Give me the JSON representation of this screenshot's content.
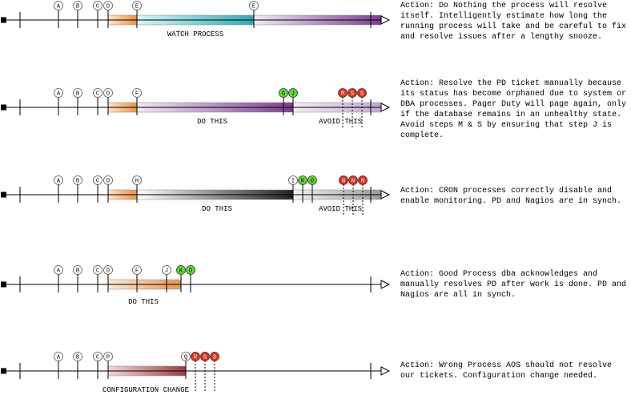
{
  "rows": [
    {
      "markers": [
        "A",
        "B",
        "C",
        "D",
        "E",
        "E"
      ],
      "captions": [
        "WATCH PROCESS"
      ],
      "action": "Action: Do Nothing the process will resolve itself. Intelligently estimate how long the running process will take and be careful to fix and resolve issues after a lengthy snooze."
    },
    {
      "markers": [
        "A",
        "B",
        "C",
        "D",
        "F",
        "G",
        "J",
        "M",
        "S",
        "S"
      ],
      "captions": [
        "DO THIS",
        "AVOID THIS"
      ],
      "action": "Action: Resolve the PD ticket manually because its status has become orphaned due to system or DBA processes. Pager Duty will page again, only if the database remains in an unhealthy state. Avoid steps M & S by ensuring that step J is complete."
    },
    {
      "markers": [
        "A",
        "B",
        "C",
        "D",
        "H",
        "I",
        "K",
        "O",
        "N",
        "N",
        "N"
      ],
      "captions": [
        "DO THIS",
        "AVOID THIS"
      ],
      "action": "Action: CRON processes correctly disable and enable monitoring. PD and Nagios are in synch."
    },
    {
      "markers": [
        "A",
        "B",
        "C",
        "D",
        "F",
        "J",
        "K",
        "O"
      ],
      "captions": [
        "DO THIS"
      ],
      "action": "Action: Good Process dba acknowledges and manually resolves PD after work is done. PD and Nagios are all in synch."
    },
    {
      "markers": [
        "A",
        "B",
        "C",
        "P",
        "Q",
        "R",
        "S",
        "S"
      ],
      "captions": [
        "CONFIGURATION CHANGE"
      ],
      "action": "Action: Wrong Process AOS should not resolve our tickets. Configuration change needed."
    }
  ]
}
